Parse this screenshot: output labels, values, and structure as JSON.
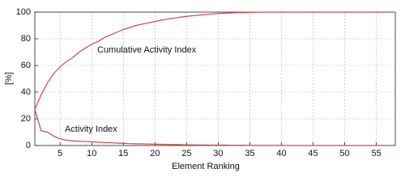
{
  "chart_data": {
    "type": "line",
    "xlabel": "Element Ranking",
    "ylabel": "[%]",
    "annotations": [
      "Cumulative Activity Index",
      "Activity Index"
    ],
    "x": [
      1,
      2,
      3,
      4,
      5,
      6,
      7,
      8,
      9,
      10,
      11,
      12,
      13,
      14,
      15,
      16,
      17,
      18,
      19,
      20,
      21,
      22,
      23,
      24,
      25,
      26,
      27,
      28,
      29,
      30,
      31,
      32,
      33,
      34,
      35,
      36,
      37,
      38,
      39,
      40,
      41,
      42,
      43,
      44,
      45,
      46,
      47,
      48,
      49,
      50,
      51,
      52,
      53,
      54,
      55,
      56,
      57
    ],
    "series": [
      {
        "name": "Cumulative Activity Index",
        "color": "#d0464c",
        "values": [
          27,
          38,
          47,
          54,
          59,
          63,
          66,
          70,
          73,
          76,
          78,
          81,
          83,
          85,
          87,
          88.5,
          90,
          91,
          92,
          93,
          94,
          94.8,
          95.5,
          96.2,
          96.8,
          97.3,
          97.8,
          98.2,
          98.6,
          98.9,
          99.2,
          99.4,
          99.6,
          99.7,
          99.8,
          99.9,
          100,
          100,
          100,
          100,
          100,
          100,
          100,
          100,
          100,
          100,
          100,
          100,
          100,
          100,
          100,
          100,
          100,
          100,
          100,
          100,
          100
        ]
      },
      {
        "name": "Activity Index",
        "color": "#d0464c",
        "values": [
          27,
          11,
          10,
          7,
          5,
          4,
          3.5,
          3.2,
          3,
          2.8,
          2.5,
          2.2,
          2,
          1.8,
          1.6,
          1.4,
          1.3,
          1.2,
          1.1,
          1,
          0.9,
          0.8,
          0.7,
          0.6,
          0.5,
          0.5,
          0.4,
          0.4,
          0.3,
          0.3,
          0.3,
          0.2,
          0.2,
          0.2,
          0.1,
          0.1,
          0.1,
          0.1,
          0.1,
          0.1,
          0,
          0,
          0,
          0,
          0,
          0,
          0,
          0,
          0,
          0,
          0,
          0,
          0,
          0,
          0,
          0,
          0
        ]
      }
    ],
    "xlim": [
      1,
      58
    ],
    "ylim": [
      0,
      100
    ],
    "xticks": [
      5,
      10,
      15,
      20,
      25,
      30,
      35,
      40,
      45,
      50,
      55
    ],
    "yticks": [
      0,
      20,
      40,
      60,
      80,
      100
    ],
    "grid": true
  }
}
